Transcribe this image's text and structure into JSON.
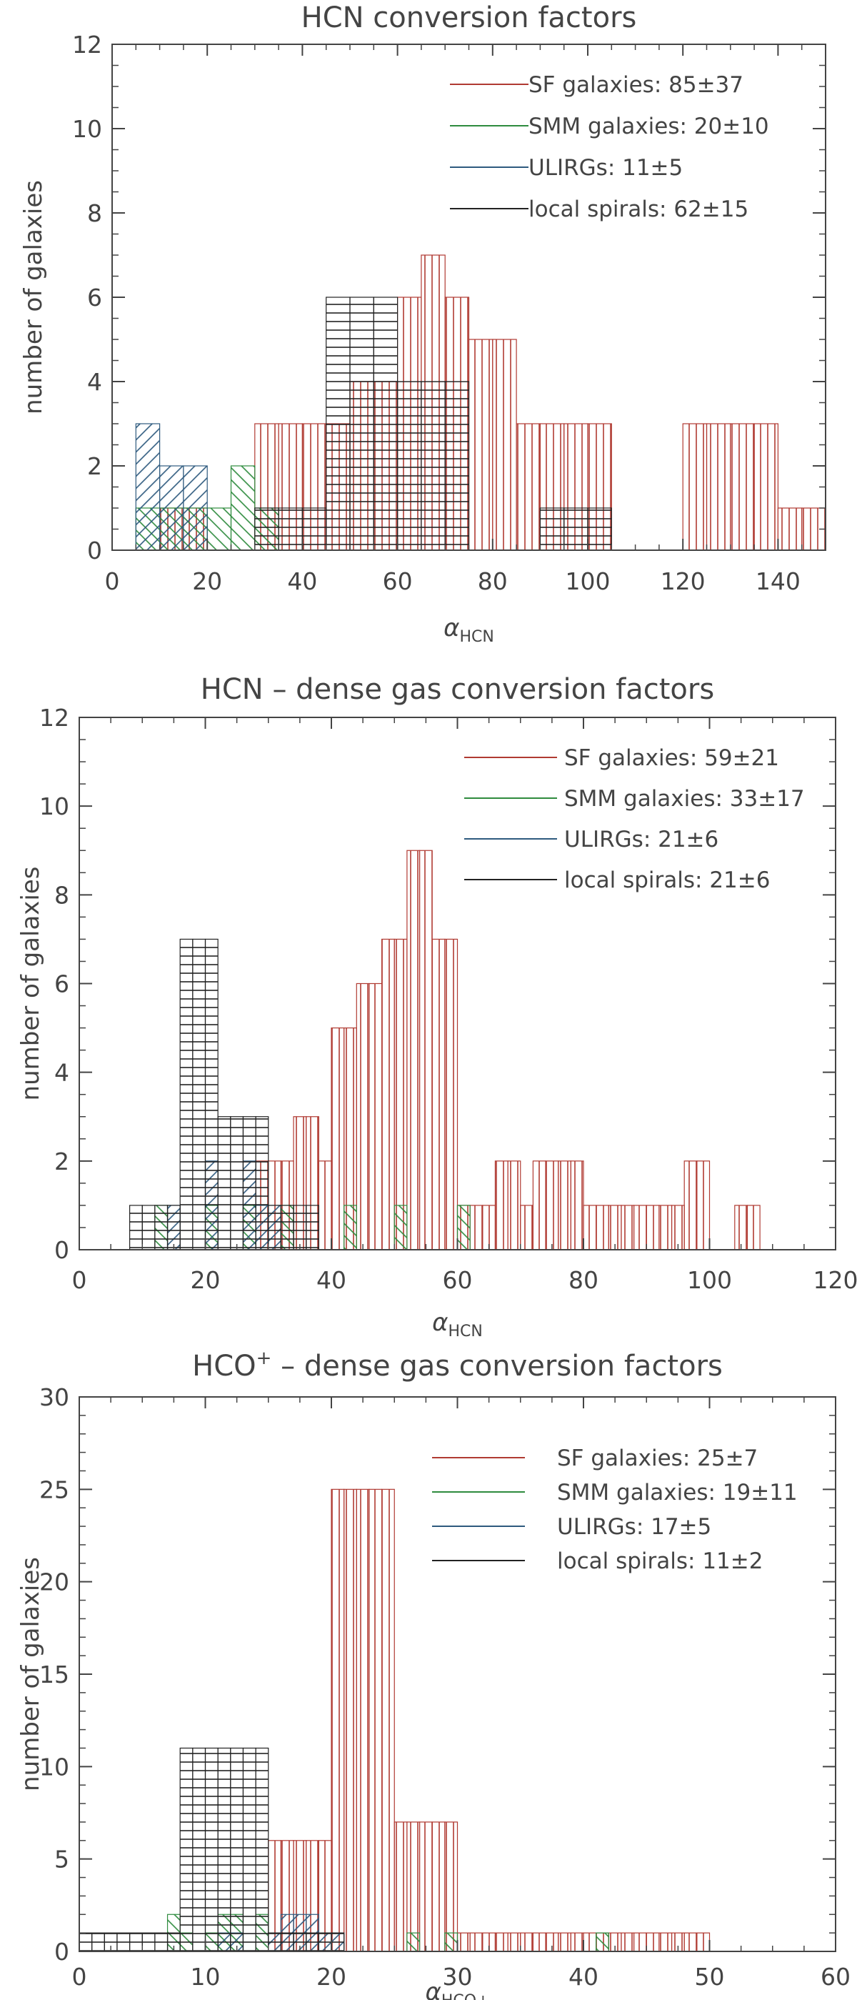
{
  "chart_data": [
    {
      "type": "bar",
      "title": "HCN conversion factors",
      "xlabel_main": "α",
      "xlabel_sub": "HCN",
      "ylabel": "number of galaxies",
      "xlim": [
        0,
        150
      ],
      "ylim": [
        0,
        12
      ],
      "xticks": [
        0,
        20,
        40,
        60,
        80,
        100,
        120,
        140
      ],
      "yticks": [
        0,
        2,
        4,
        6,
        8,
        10,
        12
      ],
      "bin_width": 5,
      "series": [
        {
          "name": "SF galaxies: 85±37",
          "color": "#b03a32",
          "hatch": "vertical",
          "bins": [
            [
              10,
              1
            ],
            [
              15,
              1
            ],
            [
              30,
              3
            ],
            [
              35,
              3
            ],
            [
              40,
              3
            ],
            [
              45,
              3
            ],
            [
              50,
              4
            ],
            [
              55,
              4
            ],
            [
              60,
              6
            ],
            [
              65,
              7
            ],
            [
              70,
              6
            ],
            [
              75,
              5
            ],
            [
              80,
              5
            ],
            [
              85,
              3
            ],
            [
              90,
              3
            ],
            [
              95,
              3
            ],
            [
              100,
              3
            ],
            [
              120,
              3
            ],
            [
              125,
              3
            ],
            [
              130,
              3
            ],
            [
              135,
              3
            ],
            [
              140,
              1
            ],
            [
              145,
              1
            ]
          ]
        },
        {
          "name": "SMM galaxies: 20±10",
          "color": "#2e8b3e",
          "hatch": "diag-down",
          "bins": [
            [
              5,
              1
            ],
            [
              10,
              1
            ],
            [
              15,
              1
            ],
            [
              20,
              1
            ],
            [
              25,
              2
            ],
            [
              30,
              1
            ]
          ]
        },
        {
          "name": "ULIRGs: 11±5",
          "color": "#2e5a7e",
          "hatch": "diag-up",
          "bins": [
            [
              5,
              3
            ],
            [
              10,
              2
            ],
            [
              15,
              2
            ]
          ]
        },
        {
          "name": "local spirals: 62±15",
          "color": "#222222",
          "hatch": "horizontal",
          "bins": [
            [
              30,
              1
            ],
            [
              35,
              1
            ],
            [
              40,
              1
            ],
            [
              45,
              6
            ],
            [
              50,
              6
            ],
            [
              55,
              6
            ],
            [
              60,
              4
            ],
            [
              65,
              4
            ],
            [
              70,
              4
            ],
            [
              90,
              1
            ],
            [
              95,
              1
            ],
            [
              100,
              1
            ]
          ]
        }
      ]
    },
    {
      "type": "bar",
      "title": "HCN – dense gas conversion factors",
      "xlabel_main": "α",
      "xlabel_sub": "HCN",
      "ylabel": "number of galaxies",
      "xlim": [
        0,
        120
      ],
      "ylim": [
        0,
        12
      ],
      "xticks": [
        0,
        20,
        40,
        60,
        80,
        100,
        120
      ],
      "yticks": [
        0,
        2,
        4,
        6,
        8,
        10,
        12
      ],
      "bin_width": 2,
      "series": [
        {
          "name": "SF galaxies: 59±21",
          "color": "#b03a32",
          "hatch": "vertical",
          "bins": [
            [
              28,
              2
            ],
            [
              30,
              2
            ],
            [
              32,
              2
            ],
            [
              34,
              3
            ],
            [
              36,
              3
            ],
            [
              38,
              2
            ],
            [
              40,
              5
            ],
            [
              42,
              5
            ],
            [
              44,
              6
            ],
            [
              46,
              6
            ],
            [
              48,
              7
            ],
            [
              50,
              7
            ],
            [
              52,
              9
            ],
            [
              54,
              9
            ],
            [
              56,
              7
            ],
            [
              58,
              7
            ],
            [
              60,
              1
            ],
            [
              62,
              1
            ],
            [
              64,
              1
            ],
            [
              66,
              2
            ],
            [
              68,
              2
            ],
            [
              70,
              1
            ],
            [
              72,
              2
            ],
            [
              74,
              2
            ],
            [
              76,
              2
            ],
            [
              78,
              2
            ],
            [
              80,
              1
            ],
            [
              82,
              1
            ],
            [
              84,
              1
            ],
            [
              86,
              1
            ],
            [
              88,
              1
            ],
            [
              90,
              1
            ],
            [
              92,
              1
            ],
            [
              94,
              1
            ],
            [
              96,
              2
            ],
            [
              98,
              2
            ],
            [
              104,
              1
            ],
            [
              106,
              1
            ]
          ]
        },
        {
          "name": "SMM galaxies: 33±17",
          "color": "#2e8b3e",
          "hatch": "diag-down",
          "bins": [
            [
              12,
              1
            ],
            [
              20,
              1
            ],
            [
              26,
              1
            ],
            [
              32,
              1
            ],
            [
              42,
              1
            ],
            [
              50,
              1
            ],
            [
              60,
              1
            ]
          ]
        },
        {
          "name": "ULIRGs: 21±6",
          "color": "#2e5a7e",
          "hatch": "diag-up",
          "bins": [
            [
              14,
              1
            ],
            [
              20,
              2
            ],
            [
              26,
              2
            ],
            [
              28,
              1
            ],
            [
              30,
              1
            ]
          ]
        },
        {
          "name": "local spirals: 21±6",
          "color": "#222222",
          "hatch": "horizontal",
          "bins": [
            [
              8,
              1
            ],
            [
              10,
              1
            ],
            [
              12,
              1
            ],
            [
              14,
              1
            ],
            [
              16,
              7
            ],
            [
              18,
              7
            ],
            [
              20,
              7
            ],
            [
              22,
              3
            ],
            [
              24,
              3
            ],
            [
              26,
              3
            ],
            [
              28,
              3
            ],
            [
              30,
              1
            ],
            [
              32,
              1
            ],
            [
              34,
              1
            ],
            [
              36,
              1
            ]
          ]
        }
      ]
    },
    {
      "type": "bar",
      "title_main": "HCO",
      "title_sup": "+",
      "title_rest": " – dense gas conversion factors",
      "xlabel_main": "α",
      "xlabel_sub": "HCO+",
      "ylabel": "number of galaxies",
      "xlim": [
        0,
        60
      ],
      "ylim": [
        0,
        30
      ],
      "xticks": [
        0,
        10,
        20,
        30,
        40,
        50,
        60
      ],
      "yticks": [
        0,
        5,
        10,
        15,
        20,
        25,
        30
      ],
      "bin_width": 1,
      "series": [
        {
          "name": "SF galaxies: 25±7",
          "color": "#b03a32",
          "hatch": "vertical",
          "bins": [
            [
              15,
              6
            ],
            [
              16,
              6
            ],
            [
              17,
              6
            ],
            [
              18,
              6
            ],
            [
              19,
              6
            ],
            [
              20,
              25
            ],
            [
              21,
              25
            ],
            [
              22,
              25
            ],
            [
              23,
              25
            ],
            [
              24,
              25
            ],
            [
              25,
              7
            ],
            [
              26,
              7
            ],
            [
              27,
              7
            ],
            [
              28,
              7
            ],
            [
              29,
              7
            ],
            [
              30,
              1
            ],
            [
              31,
              1
            ],
            [
              32,
              1
            ],
            [
              33,
              1
            ],
            [
              34,
              1
            ],
            [
              35,
              1
            ],
            [
              36,
              1
            ],
            [
              37,
              1
            ],
            [
              38,
              1
            ],
            [
              39,
              1
            ],
            [
              40,
              1
            ],
            [
              41,
              1
            ],
            [
              42,
              1
            ],
            [
              43,
              1
            ],
            [
              44,
              1
            ],
            [
              45,
              1
            ],
            [
              46,
              1
            ],
            [
              47,
              1
            ],
            [
              48,
              1
            ],
            [
              49,
              1
            ]
          ]
        },
        {
          "name": "SMM galaxies: 19±11",
          "color": "#2e8b3e",
          "hatch": "diag-down",
          "bins": [
            [
              7,
              2
            ],
            [
              8,
              1
            ],
            [
              10,
              1
            ],
            [
              11,
              2
            ],
            [
              12,
              2
            ],
            [
              14,
              2
            ],
            [
              26,
              1
            ],
            [
              29,
              1
            ],
            [
              41,
              1
            ]
          ]
        },
        {
          "name": "ULIRGs: 17±5",
          "color": "#2e5a7e",
          "hatch": "diag-up",
          "bins": [
            [
              11,
              1
            ],
            [
              12,
              1
            ],
            [
              15,
              1
            ],
            [
              16,
              2
            ],
            [
              17,
              2
            ],
            [
              18,
              2
            ],
            [
              19,
              1
            ],
            [
              20,
              1
            ]
          ]
        },
        {
          "name": "local spirals: 11±2",
          "color": "#222222",
          "hatch": "horizontal",
          "bins": [
            [
              0,
              1
            ],
            [
              1,
              1
            ],
            [
              2,
              1
            ],
            [
              3,
              1
            ],
            [
              4,
              1
            ],
            [
              5,
              1
            ],
            [
              6,
              1
            ],
            [
              7,
              1
            ],
            [
              8,
              11
            ],
            [
              9,
              11
            ],
            [
              10,
              11
            ],
            [
              11,
              11
            ],
            [
              12,
              11
            ],
            [
              13,
              11
            ],
            [
              14,
              11
            ],
            [
              15,
              1
            ],
            [
              16,
              1
            ],
            [
              17,
              1
            ],
            [
              18,
              1
            ],
            [
              19,
              1
            ],
            [
              20,
              1
            ]
          ]
        }
      ]
    }
  ]
}
